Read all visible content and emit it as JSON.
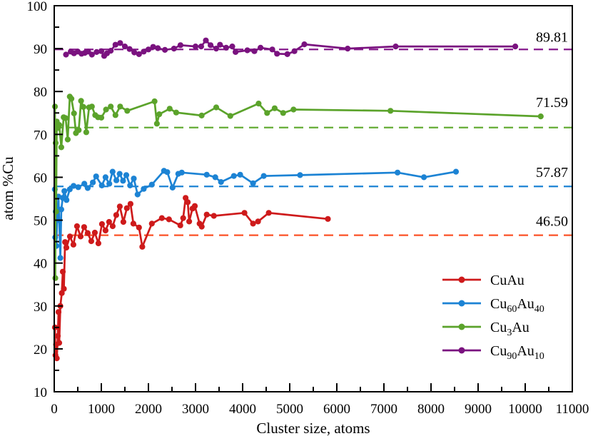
{
  "chart_data": {
    "type": "line",
    "title": "",
    "xlabel": "Cluster size, atoms",
    "ylabel": "atom %Cu",
    "xlim": [
      0,
      11000
    ],
    "ylim": [
      10,
      100
    ],
    "x_major_ticks": [
      0,
      1000,
      2000,
      3000,
      4000,
      5000,
      6000,
      7000,
      8000,
      9000,
      10000,
      11000
    ],
    "x_minor_step": 500,
    "y_major_ticks": [
      10,
      20,
      30,
      40,
      50,
      60,
      70,
      80,
      90,
      100
    ],
    "y_minor_step": 5,
    "grid": false,
    "legend_position": "lower right",
    "ref_lines": [
      {
        "value": 46.5,
        "label": "46.50",
        "color": "#FB5126",
        "label_dy": 13
      },
      {
        "value": 57.87,
        "label": "57.87",
        "color": "#1C83D4",
        "label_dy": 13
      },
      {
        "value": 71.59,
        "label": "71.59",
        "color": "#64AC35",
        "label_dy": 29
      },
      {
        "value": 89.81,
        "label": "89.81",
        "color": "#861A8C",
        "label_dy": 11
      }
    ],
    "series": [
      {
        "name": "CuAu",
        "slug": "cuau",
        "color": "#CE1A1B",
        "marker": "circle",
        "label_parts": [
          {
            "t": "CuAu"
          }
        ],
        "points": [
          [
            15,
            25.0
          ],
          [
            25,
            18.5
          ],
          [
            40,
            21.0
          ],
          [
            55,
            17.8
          ],
          [
            75,
            23.0
          ],
          [
            91,
            28.6
          ],
          [
            106,
            21.4
          ],
          [
            130,
            30.0
          ],
          [
            160,
            33.0
          ],
          [
            182,
            38.0
          ],
          [
            205,
            34.0
          ],
          [
            230,
            44.9
          ],
          [
            257,
            43.6
          ],
          [
            333,
            46.2
          ],
          [
            408,
            44.3
          ],
          [
            484,
            48.6
          ],
          [
            560,
            46.2
          ],
          [
            635,
            48.4
          ],
          [
            710,
            47.0
          ],
          [
            787,
            45.1
          ],
          [
            862,
            47.1
          ],
          [
            938,
            44.6
          ],
          [
            1014,
            49.1
          ],
          [
            1089,
            47.6
          ],
          [
            1165,
            49.6
          ],
          [
            1241,
            48.6
          ],
          [
            1316,
            51.2
          ],
          [
            1392,
            53.2
          ],
          [
            1468,
            49.6
          ],
          [
            1543,
            52.8
          ],
          [
            1619,
            53.8
          ],
          [
            1680,
            49.2
          ],
          [
            1800,
            48.3
          ],
          [
            1870,
            43.8
          ],
          [
            2073,
            49.2
          ],
          [
            2285,
            50.5
          ],
          [
            2436,
            50.2
          ],
          [
            2678,
            48.8
          ],
          [
            2738,
            50.5
          ],
          [
            2790,
            55.2
          ],
          [
            2835,
            54.2
          ],
          [
            2865,
            49.7
          ],
          [
            2935,
            52.7
          ],
          [
            2985,
            53.3
          ],
          [
            3086,
            49.2
          ],
          [
            3132,
            48.5
          ],
          [
            3238,
            51.3
          ],
          [
            3389,
            51.0
          ],
          [
            4039,
            51.7
          ],
          [
            4221,
            49.2
          ],
          [
            4327,
            49.7
          ],
          [
            4554,
            51.7
          ],
          [
            5810,
            50.3
          ]
        ]
      },
      {
        "name": "Cu60Au40",
        "slug": "cu60au40",
        "color": "#1C83D4",
        "marker": "circle",
        "label_parts": [
          {
            "t": "Cu"
          },
          {
            "t": "60",
            "sub": true
          },
          {
            "t": "Au"
          },
          {
            "t": "40",
            "sub": true
          }
        ],
        "points": [
          [
            12,
            57.2
          ],
          [
            20,
            46.0
          ],
          [
            30,
            52.0
          ],
          [
            45,
            44.0
          ],
          [
            60,
            50.0
          ],
          [
            90,
            55.5
          ],
          [
            130,
            41.2
          ],
          [
            150,
            52.5
          ],
          [
            180,
            55.2
          ],
          [
            215,
            56.8
          ],
          [
            260,
            54.7
          ],
          [
            330,
            57.2
          ],
          [
            410,
            58.0
          ],
          [
            510,
            57.7
          ],
          [
            640,
            58.5
          ],
          [
            710,
            57.5
          ],
          [
            820,
            58.8
          ],
          [
            890,
            60.2
          ],
          [
            1010,
            58.1
          ],
          [
            1090,
            60.0
          ],
          [
            1170,
            58.5
          ],
          [
            1240,
            61.3
          ],
          [
            1320,
            59.3
          ],
          [
            1390,
            60.8
          ],
          [
            1460,
            59.2
          ],
          [
            1530,
            60.5
          ],
          [
            1610,
            58.1
          ],
          [
            1690,
            59.7
          ],
          [
            1770,
            56.0
          ],
          [
            1900,
            57.3
          ],
          [
            2073,
            58.3
          ],
          [
            2330,
            61.5
          ],
          [
            2400,
            61.2
          ],
          [
            2512,
            57.6
          ],
          [
            2633,
            60.8
          ],
          [
            2708,
            61.1
          ],
          [
            3238,
            60.6
          ],
          [
            3420,
            60.0
          ],
          [
            3541,
            58.9
          ],
          [
            3813,
            60.3
          ],
          [
            3949,
            60.6
          ],
          [
            4221,
            58.6
          ],
          [
            4448,
            60.3
          ],
          [
            5220,
            60.5
          ],
          [
            7290,
            61.1
          ],
          [
            7850,
            60.0
          ],
          [
            8530,
            61.3
          ]
        ]
      },
      {
        "name": "Cu3Au",
        "slug": "cu3au",
        "color": "#5BA32B",
        "marker": "circle",
        "label_parts": [
          {
            "t": "Cu"
          },
          {
            "t": "3",
            "sub": true
          },
          {
            "t": "Au"
          }
        ],
        "points": [
          [
            15,
            76.5
          ],
          [
            22,
            36.5
          ],
          [
            30,
            68.0
          ],
          [
            40,
            52.0
          ],
          [
            55,
            73.0
          ],
          [
            80,
            71.5
          ],
          [
            106,
            72.2
          ],
          [
            150,
            67.0
          ],
          [
            200,
            74.0
          ],
          [
            242,
            73.8
          ],
          [
            287,
            68.8
          ],
          [
            330,
            78.8
          ],
          [
            365,
            78.3
          ],
          [
            420,
            74.9
          ],
          [
            460,
            70.3
          ],
          [
            520,
            71.0
          ],
          [
            570,
            77.8
          ],
          [
            620,
            76.4
          ],
          [
            680,
            70.5
          ],
          [
            740,
            76.3
          ],
          [
            800,
            76.5
          ],
          [
            870,
            74.5
          ],
          [
            930,
            74.0
          ],
          [
            1000,
            73.9
          ],
          [
            1100,
            75.8
          ],
          [
            1200,
            76.5
          ],
          [
            1300,
            74.5
          ],
          [
            1400,
            76.5
          ],
          [
            1550,
            75.5
          ],
          [
            2130,
            77.7
          ],
          [
            2180,
            72.5
          ],
          [
            2230,
            74.7
          ],
          [
            2451,
            76.0
          ],
          [
            2590,
            75.1
          ],
          [
            3130,
            74.4
          ],
          [
            3440,
            76.3
          ],
          [
            3740,
            74.3
          ],
          [
            4340,
            77.2
          ],
          [
            4520,
            75.0
          ],
          [
            4680,
            76.1
          ],
          [
            4860,
            75.0
          ],
          [
            5080,
            75.8
          ],
          [
            7140,
            75.5
          ],
          [
            10330,
            74.2
          ]
        ]
      },
      {
        "name": "Cu90Au10",
        "slug": "cu90au10",
        "color": "#7A127F",
        "marker": "circle",
        "label_parts": [
          {
            "t": "Cu"
          },
          {
            "t": "90",
            "sub": true
          },
          {
            "t": "Au"
          },
          {
            "t": "10",
            "sub": true
          }
        ],
        "points": [
          [
            250,
            88.6
          ],
          [
            350,
            89.3
          ],
          [
            420,
            88.9
          ],
          [
            500,
            89.3
          ],
          [
            580,
            88.8
          ],
          [
            650,
            89.0
          ],
          [
            720,
            89.3
          ],
          [
            800,
            88.6
          ],
          [
            900,
            89.2
          ],
          [
            1000,
            89.4
          ],
          [
            1060,
            88.3
          ],
          [
            1120,
            88.9
          ],
          [
            1200,
            89.5
          ],
          [
            1300,
            90.9
          ],
          [
            1400,
            91.3
          ],
          [
            1500,
            90.5
          ],
          [
            1600,
            89.9
          ],
          [
            1700,
            89.1
          ],
          [
            1800,
            88.7
          ],
          [
            1900,
            89.3
          ],
          [
            2000,
            89.8
          ],
          [
            2100,
            90.4
          ],
          [
            2200,
            90.1
          ],
          [
            2350,
            89.7
          ],
          [
            2542,
            90.0
          ],
          [
            2680,
            90.8
          ],
          [
            3000,
            90.5
          ],
          [
            3120,
            90.5
          ],
          [
            3220,
            91.9
          ],
          [
            3320,
            90.8
          ],
          [
            3440,
            90.0
          ],
          [
            3520,
            90.9
          ],
          [
            3650,
            90.2
          ],
          [
            3780,
            90.5
          ],
          [
            3850,
            89.2
          ],
          [
            4100,
            89.6
          ],
          [
            4250,
            89.4
          ],
          [
            4380,
            90.2
          ],
          [
            4630,
            89.8
          ],
          [
            4730,
            88.8
          ],
          [
            4950,
            88.7
          ],
          [
            5100,
            89.4
          ],
          [
            5310,
            91.0
          ],
          [
            6230,
            90.0
          ],
          [
            7250,
            90.5
          ],
          [
            9790,
            90.5
          ]
        ]
      }
    ]
  }
}
